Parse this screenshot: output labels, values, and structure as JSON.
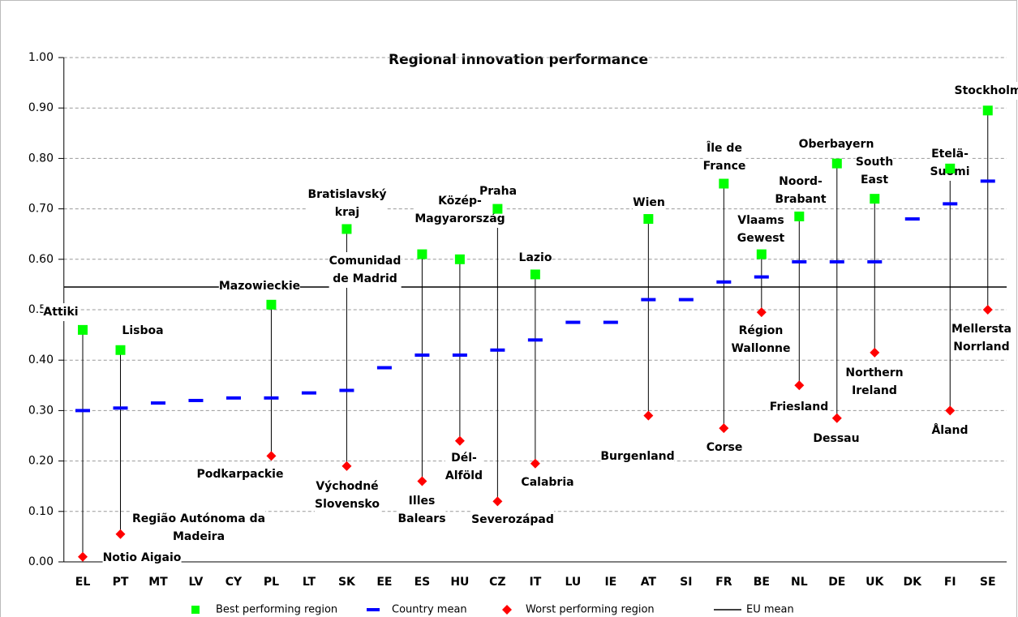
{
  "chart_data": {
    "type": "range",
    "title": "Regional innovation performance",
    "categories": [
      "EL",
      "PT",
      "MT",
      "LV",
      "CY",
      "PL",
      "LT",
      "SK",
      "EE",
      "ES",
      "HU",
      "CZ",
      "IT",
      "LU",
      "IE",
      "AT",
      "SI",
      "FR",
      "BE",
      "NL",
      "DE",
      "UK",
      "DK",
      "FI",
      "SE"
    ],
    "series": [
      {
        "name": "Best performing region",
        "color": "#00ff00",
        "values": [
          0.46,
          0.42,
          null,
          null,
          null,
          0.51,
          null,
          0.66,
          null,
          0.61,
          0.6,
          0.7,
          0.57,
          null,
          null,
          0.68,
          null,
          0.75,
          0.61,
          0.685,
          0.79,
          0.72,
          null,
          0.78,
          0.895
        ],
        "labels": [
          "Attiki",
          "Lisboa",
          null,
          null,
          null,
          "Mazowieckie",
          null,
          "Bratislavský\nkraj",
          null,
          "Comunidad\nde Madrid",
          "Közép-\nMagyarország",
          "Praha",
          "Lazio",
          null,
          null,
          "Wien",
          null,
          "Île de\nFrance",
          "Vlaams\nGewest",
          "Noord-\nBrabant",
          "Oberbayern",
          "South\nEast",
          null,
          "Etelä-\nSuomi",
          "Stockholm"
        ]
      },
      {
        "name": "Country mean",
        "color": "#0000ff",
        "values": [
          0.3,
          0.305,
          0.315,
          0.32,
          0.325,
          0.325,
          0.335,
          0.34,
          0.385,
          0.41,
          0.41,
          0.42,
          0.44,
          0.475,
          0.475,
          0.52,
          0.52,
          0.555,
          0.565,
          0.595,
          0.595,
          0.595,
          0.68,
          0.71,
          0.755
        ]
      },
      {
        "name": "Worst performing region",
        "color": "#ff0000",
        "values": [
          0.01,
          0.055,
          null,
          null,
          null,
          0.21,
          null,
          0.19,
          null,
          0.16,
          0.24,
          0.12,
          0.195,
          null,
          null,
          0.29,
          null,
          0.265,
          0.495,
          0.35,
          0.285,
          0.415,
          null,
          0.3,
          0.5
        ],
        "labels": [
          "Notio Aigaio",
          "Região Autónoma da\nMadeira",
          null,
          null,
          null,
          "Podkarpackie",
          null,
          "Východné\nSlovensko",
          null,
          "Illes\nBalears",
          "Dél-\nAlföld",
          "Severozápad",
          "Calabria",
          null,
          null,
          "Burgenland",
          null,
          "Corse",
          "Région\nWallonne",
          "Friesland",
          "Dessau",
          "Northern\nIreland",
          null,
          "Åland",
          "Mellersta\nNorrland"
        ]
      }
    ],
    "eu_mean": {
      "name": "EU mean",
      "value": 0.545
    },
    "ylim": [
      0,
      1
    ],
    "yticks": [
      {
        "value": 0,
        "label": "0.00"
      },
      {
        "value": 0.1,
        "label": "0.10"
      },
      {
        "value": 0.2,
        "label": "0.20"
      },
      {
        "value": 0.3,
        "label": "0.30"
      },
      {
        "value": 0.4,
        "label": "0.40"
      },
      {
        "value": 0.5,
        "label": "0.50"
      },
      {
        "value": 0.6,
        "label": "0.60"
      },
      {
        "value": 0.7,
        "label": "0.70"
      },
      {
        "value": 0.8,
        "label": "0.80"
      },
      {
        "value": 0.9,
        "label": "0.90"
      },
      {
        "value": 1,
        "label": "1.00"
      }
    ],
    "grid": true
  }
}
